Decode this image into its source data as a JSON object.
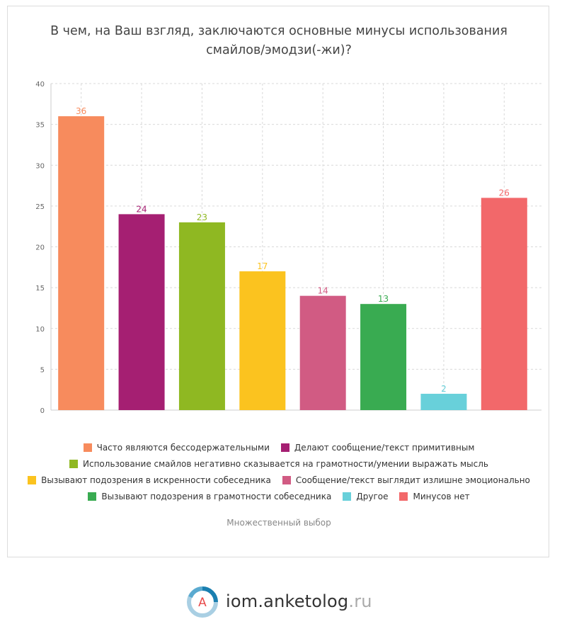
{
  "title": "В чем, на Ваш взгляд, заключаются основные минусы использования смайлов/эмодзи(-жи)?",
  "footnote": "Множественный выбор",
  "brand": {
    "name": "iom.anketolog",
    "tld": ".ru",
    "logo_letter": "A",
    "logo_icon": "anketolog-logo-icon"
  },
  "chart_data": {
    "type": "bar",
    "title": "В чем, на Ваш взгляд, заключаются основные минусы использования смайлов/эмодзи(-жи)?",
    "categories": [
      "Часто являются бессодержательными",
      "Делают сообщение/текст примитивным",
      "Использование смайлов негативно сказывается на грамотности/умении выражать мысль",
      "Вызывают подозрения в искренности собеседника",
      "Сообщение/текст выглядит излишне эмоционально",
      "Вызывают подозрения в грамотности собеседника",
      "Другое",
      "Минусов нет"
    ],
    "values": [
      36,
      24,
      23,
      17,
      14,
      13,
      2,
      26
    ],
    "colors": [
      "#f78b5d",
      "#a51f72",
      "#8fb822",
      "#fbc31f",
      "#d15b83",
      "#39ab51",
      "#68d0da",
      "#f2686a"
    ],
    "ylim": [
      0,
      40
    ],
    "yticks": [
      0,
      5,
      10,
      15,
      20,
      25,
      30,
      35,
      40
    ],
    "grid": true,
    "legend_position": "bottom"
  }
}
